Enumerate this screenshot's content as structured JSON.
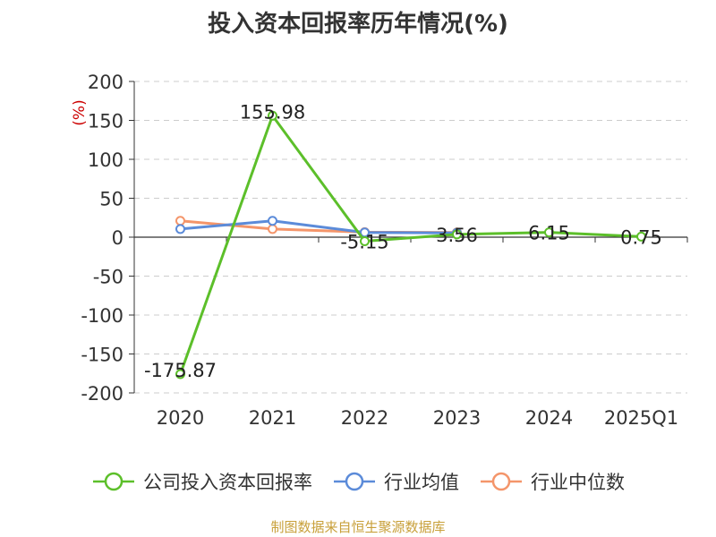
{
  "title": "投入资本回报率历年情况(%)",
  "source": "制图数据来自恒生聚源数据库",
  "chart_data": {
    "type": "line",
    "title": "投入资本回报率历年情况(%)",
    "ylabel": "(%)",
    "xlabel": "",
    "ylim": [
      -200,
      200
    ],
    "yticks": [
      200,
      150,
      100,
      50,
      0,
      -50,
      -100,
      -150,
      -200
    ],
    "grid": true,
    "legend_position": "bottom",
    "categories": [
      "2020",
      "2021",
      "2022",
      "2023",
      "2024",
      "2025Q1"
    ],
    "series": [
      {
        "name": "公司投入资本回报率",
        "color": "#5cbf2a",
        "values": [
          -175.87,
          155.98,
          -5.15,
          3.56,
          6.15,
          0.75
        ],
        "labels": [
          "-175.87",
          "155.98",
          "-5.15",
          "3.56",
          "6.15",
          "0.75"
        ]
      },
      {
        "name": "行业均值",
        "color": "#5b8bd9",
        "values": [
          10.5,
          21.0,
          6.0,
          5.5,
          null,
          null
        ]
      },
      {
        "name": "行业中位数",
        "color": "#f4956a",
        "values": [
          21.0,
          10.5,
          6.5,
          6.0,
          null,
          null
        ]
      }
    ]
  }
}
